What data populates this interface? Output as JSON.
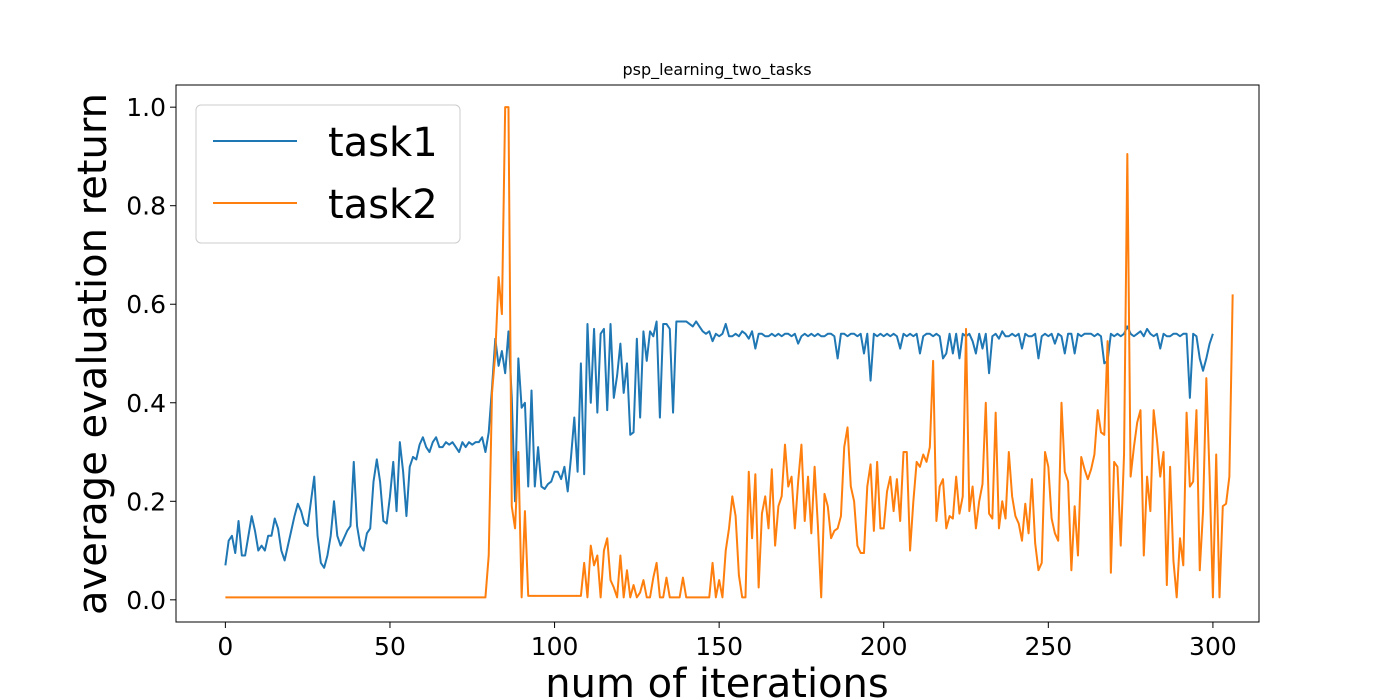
{
  "chart_data": {
    "type": "line",
    "title": "psp_learning_two_tasks",
    "xlabel": "num of iterations",
    "ylabel": "average evaluation return",
    "xlim": [
      -15,
      314
    ],
    "ylim": [
      -0.045,
      1.045
    ],
    "xticks": [
      0,
      50,
      100,
      150,
      200,
      250,
      300
    ],
    "yticks": [
      0.0,
      0.2,
      0.4,
      0.6,
      0.8,
      1.0
    ],
    "xtick_labels": [
      "0",
      "50",
      "100",
      "150",
      "200",
      "250",
      "300"
    ],
    "ytick_labels": [
      "0.0",
      "0.2",
      "0.4",
      "0.6",
      "0.8",
      "1.0"
    ],
    "grid": false,
    "legend_position": "top-left",
    "series": [
      {
        "name": "task1",
        "color": "#1f77b4",
        "x_start": 0,
        "values": [
          0.07,
          0.12,
          0.13,
          0.095,
          0.16,
          0.09,
          0.09,
          0.13,
          0.17,
          0.14,
          0.1,
          0.11,
          0.1,
          0.13,
          0.13,
          0.165,
          0.145,
          0.1,
          0.08,
          0.11,
          0.14,
          0.17,
          0.195,
          0.18,
          0.155,
          0.15,
          0.2,
          0.25,
          0.13,
          0.075,
          0.065,
          0.09,
          0.13,
          0.2,
          0.13,
          0.11,
          0.125,
          0.14,
          0.15,
          0.28,
          0.15,
          0.11,
          0.1,
          0.135,
          0.145,
          0.24,
          0.285,
          0.24,
          0.16,
          0.155,
          0.21,
          0.28,
          0.18,
          0.32,
          0.26,
          0.17,
          0.27,
          0.29,
          0.285,
          0.315,
          0.33,
          0.31,
          0.3,
          0.32,
          0.33,
          0.31,
          0.31,
          0.32,
          0.315,
          0.32,
          0.31,
          0.3,
          0.32,
          0.31,
          0.32,
          0.315,
          0.32,
          0.32,
          0.33,
          0.3,
          0.34,
          0.43,
          0.53,
          0.475,
          0.505,
          0.46,
          0.545,
          0.41,
          0.2,
          0.49,
          0.39,
          0.4,
          0.23,
          0.425,
          0.23,
          0.31,
          0.23,
          0.225,
          0.235,
          0.24,
          0.26,
          0.26,
          0.245,
          0.27,
          0.22,
          0.29,
          0.37,
          0.26,
          0.48,
          0.255,
          0.56,
          0.4,
          0.55,
          0.38,
          0.54,
          0.55,
          0.385,
          0.56,
          0.41,
          0.455,
          0.52,
          0.42,
          0.48,
          0.335,
          0.34,
          0.53,
          0.37,
          0.545,
          0.485,
          0.545,
          0.535,
          0.565,
          0.37,
          0.56,
          0.56,
          0.55,
          0.38,
          0.565,
          0.565,
          0.565,
          0.565,
          0.56,
          0.555,
          0.565,
          0.555,
          0.545,
          0.54,
          0.545,
          0.525,
          0.54,
          0.535,
          0.54,
          0.56,
          0.535,
          0.535,
          0.54,
          0.535,
          0.545,
          0.54,
          0.53,
          0.545,
          0.51,
          0.54,
          0.54,
          0.535,
          0.535,
          0.54,
          0.535,
          0.54,
          0.535,
          0.54,
          0.54,
          0.535,
          0.54,
          0.52,
          0.535,
          0.54,
          0.535,
          0.54,
          0.535,
          0.54,
          0.535,
          0.535,
          0.54,
          0.54,
          0.535,
          0.49,
          0.54,
          0.54,
          0.535,
          0.54,
          0.54,
          0.535,
          0.54,
          0.5,
          0.54,
          0.445,
          0.54,
          0.535,
          0.54,
          0.535,
          0.54,
          0.535,
          0.54,
          0.535,
          0.51,
          0.54,
          0.535,
          0.54,
          0.535,
          0.54,
          0.5,
          0.535,
          0.54,
          0.54,
          0.535,
          0.54,
          0.535,
          0.49,
          0.5,
          0.54,
          0.5,
          0.54,
          0.49,
          0.54,
          0.535,
          0.54,
          0.525,
          0.5,
          0.54,
          0.51,
          0.54,
          0.46,
          0.535,
          0.54,
          0.53,
          0.545,
          0.535,
          0.535,
          0.54,
          0.535,
          0.54,
          0.51,
          0.54,
          0.535,
          0.535,
          0.54,
          0.49,
          0.535,
          0.54,
          0.535,
          0.54,
          0.52,
          0.54,
          0.535,
          0.5,
          0.54,
          0.54,
          0.5,
          0.54,
          0.535,
          0.54,
          0.54,
          0.54,
          0.535,
          0.54,
          0.535,
          0.48,
          0.485,
          0.54,
          0.535,
          0.54,
          0.535,
          0.54,
          0.555,
          0.54,
          0.535,
          0.54,
          0.545,
          0.535,
          0.55,
          0.54,
          0.535,
          0.54,
          0.51,
          0.54,
          0.535,
          0.535,
          0.54,
          0.54,
          0.535,
          0.54,
          0.54,
          0.41,
          0.54,
          0.535,
          0.49,
          0.465,
          0.49,
          0.52,
          0.54
        ]
      },
      {
        "name": "task2",
        "color": "#ff7f0e",
        "x_start": 0,
        "values": [
          0.005,
          0.005,
          0.005,
          0.005,
          0.005,
          0.005,
          0.005,
          0.005,
          0.005,
          0.005,
          0.005,
          0.005,
          0.005,
          0.005,
          0.005,
          0.005,
          0.005,
          0.005,
          0.005,
          0.005,
          0.005,
          0.005,
          0.005,
          0.005,
          0.005,
          0.005,
          0.005,
          0.005,
          0.005,
          0.005,
          0.005,
          0.005,
          0.005,
          0.005,
          0.005,
          0.005,
          0.005,
          0.005,
          0.005,
          0.005,
          0.005,
          0.005,
          0.005,
          0.005,
          0.005,
          0.005,
          0.005,
          0.005,
          0.005,
          0.005,
          0.005,
          0.005,
          0.005,
          0.005,
          0.005,
          0.005,
          0.005,
          0.005,
          0.005,
          0.005,
          0.005,
          0.005,
          0.005,
          0.005,
          0.005,
          0.005,
          0.005,
          0.005,
          0.005,
          0.005,
          0.005,
          0.005,
          0.005,
          0.005,
          0.005,
          0.005,
          0.005,
          0.005,
          0.005,
          0.005,
          0.09,
          0.42,
          0.5,
          0.655,
          0.58,
          1.0,
          1.0,
          0.19,
          0.145,
          0.3,
          0.005,
          0.18,
          0.008,
          0.008,
          0.008,
          0.008,
          0.008,
          0.008,
          0.008,
          0.008,
          0.008,
          0.008,
          0.008,
          0.008,
          0.008,
          0.008,
          0.008,
          0.008,
          0.008,
          0.075,
          0.005,
          0.11,
          0.07,
          0.09,
          0.005,
          0.1,
          0.125,
          0.04,
          0.025,
          0.005,
          0.09,
          0.005,
          0.06,
          0.005,
          0.03,
          0.005,
          0.015,
          0.04,
          0.005,
          0.005,
          0.045,
          0.075,
          0.005,
          0.005,
          0.045,
          0.005,
          0.005,
          0.005,
          0.005,
          0.045,
          0.005,
          0.005,
          0.005,
          0.005,
          0.005,
          0.005,
          0.005,
          0.005,
          0.075,
          0.005,
          0.04,
          0.005,
          0.1,
          0.145,
          0.21,
          0.17,
          0.05,
          0.005,
          0.005,
          0.26,
          0.125,
          0.255,
          0.025,
          0.175,
          0.21,
          0.145,
          0.265,
          0.11,
          0.19,
          0.21,
          0.315,
          0.23,
          0.25,
          0.145,
          0.24,
          0.315,
          0.16,
          0.25,
          0.135,
          0.27,
          0.15,
          0.005,
          0.215,
          0.19,
          0.125,
          0.14,
          0.145,
          0.17,
          0.31,
          0.35,
          0.23,
          0.2,
          0.11,
          0.095,
          0.095,
          0.23,
          0.275,
          0.14,
          0.28,
          0.145,
          0.145,
          0.22,
          0.25,
          0.18,
          0.245,
          0.16,
          0.3,
          0.3,
          0.1,
          0.2,
          0.28,
          0.27,
          0.295,
          0.28,
          0.31,
          0.485,
          0.16,
          0.23,
          0.245,
          0.145,
          0.17,
          0.165,
          0.25,
          0.175,
          0.21,
          0.55,
          0.18,
          0.23,
          0.145,
          0.2,
          0.235,
          0.4,
          0.175,
          0.165,
          0.38,
          0.145,
          0.2,
          0.165,
          0.3,
          0.21,
          0.17,
          0.155,
          0.12,
          0.195,
          0.135,
          0.245,
          0.115,
          0.06,
          0.075,
          0.3,
          0.27,
          0.165,
          0.135,
          0.12,
          0.4,
          0.26,
          0.24,
          0.06,
          0.19,
          0.09,
          0.29,
          0.265,
          0.245,
          0.265,
          0.295,
          0.385,
          0.34,
          0.335,
          0.525,
          0.055,
          0.28,
          0.27,
          0.11,
          0.295,
          0.905,
          0.25,
          0.31,
          0.36,
          0.385,
          0.09,
          0.25,
          0.18,
          0.385,
          0.325,
          0.25,
          0.3,
          0.03,
          0.27,
          0.08,
          0.005,
          0.125,
          0.07,
          0.38,
          0.23,
          0.24,
          0.385,
          0.06,
          0.18,
          0.45,
          0.25,
          0.005,
          0.295,
          0.005,
          0.19,
          0.195,
          0.25,
          0.62
        ]
      }
    ]
  }
}
